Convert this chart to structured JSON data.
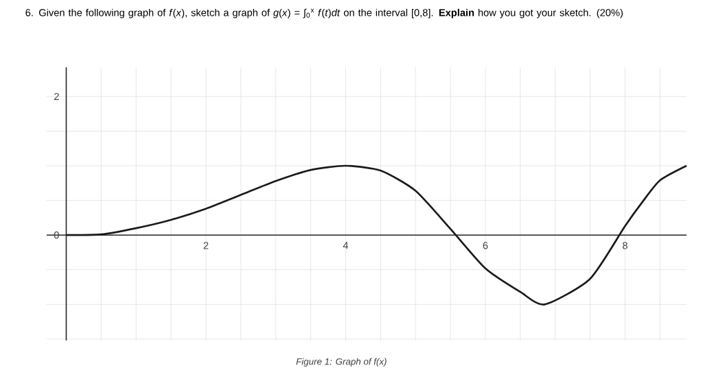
{
  "chart_data": {
    "type": "line",
    "title": "6.  Given the following graph of *f*(*x*), sketch a graph of *g*(*x*) = ∫$_{0}$$^{x}$ *f*(*t*)*dt* on the interval [0,8]. **Explain** how you got your sketch. (20%)",
    "annotations": [
      "Figure 1: Graph of f(x)"
    ],
    "x": [
      0,
      0.5,
      1,
      1.5,
      2,
      2.5,
      3,
      3.5,
      4,
      4.5,
      5,
      5.5,
      6,
      6.5,
      6.85,
      7.5,
      8,
      8.25,
      8.5,
      8.88
    ],
    "series": [
      {
        "color": "#1a1a1a",
        "values": [
          0,
          0.01,
          0.1,
          0.22,
          0.38,
          0.58,
          0.78,
          0.94,
          1.0,
          0.93,
          0.64,
          0.09,
          -0.48,
          -0.82,
          -1.0,
          -0.63,
          0.13,
          0.48,
          0.79,
          1.0
        ]
      }
    ],
    "xlim": [
      -0.28,
      8.88
    ],
    "ylim": [
      -1.52,
      2.42
    ],
    "xticks": [
      {
        "value": 0,
        "label": null
      },
      {
        "value": 0.5,
        "label": null
      },
      {
        "value": 1,
        "label": null
      },
      {
        "value": 1.5,
        "label": null
      },
      2,
      {
        "value": 2.5,
        "label": null
      },
      {
        "value": 3,
        "label": null
      },
      {
        "value": 3.5,
        "label": null
      },
      4,
      {
        "value": 4.5,
        "label": null
      },
      {
        "value": 5,
        "label": null
      },
      {
        "value": 5.5,
        "label": null
      },
      6,
      {
        "value": 6.5,
        "label": null
      },
      {
        "value": 7,
        "label": null
      },
      {
        "value": 7.5,
        "label": null
      },
      8,
      {
        "value": 8.5,
        "label": null
      }
    ],
    "yticks": [
      {
        "value": -1.5,
        "label": null
      },
      {
        "value": -1,
        "label": null
      },
      {
        "value": -0.5,
        "label": null
      },
      0,
      {
        "value": 0.5,
        "label": null
      },
      {
        "value": 1,
        "label": null
      },
      {
        "value": 1.5,
        "label": null
      },
      2
    ],
    "grid": true,
    "marker": "none",
    "line_style": "solid"
  }
}
